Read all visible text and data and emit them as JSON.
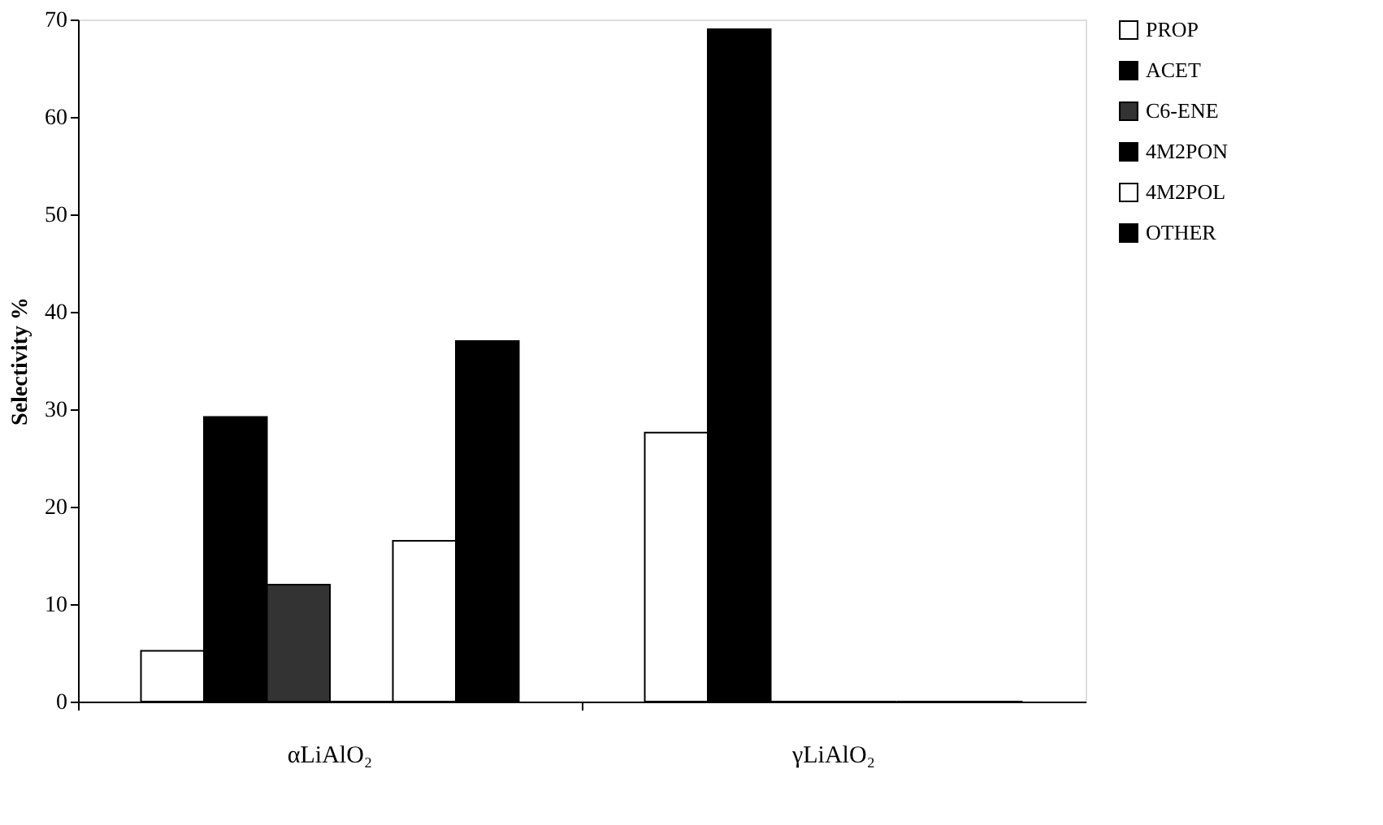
{
  "chart_data": {
    "type": "bar",
    "ylabel": "Selectivity %",
    "categories": [
      "αLiAlO₂",
      "γLiAlO₂"
    ],
    "series": [
      {
        "name": "PROP",
        "color": "#ffffff",
        "values": [
          5.2,
          27.6
        ]
      },
      {
        "name": "ACET",
        "color": "#000000",
        "values": [
          29.2,
          69
        ]
      },
      {
        "name": "C6-ENE",
        "color": "#333333",
        "values": [
          12,
          0
        ]
      },
      {
        "name": "4M2PON",
        "color": "#000000",
        "values": [
          0,
          0
        ]
      },
      {
        "name": "4M2POL",
        "color": "#ffffff",
        "values": [
          16.5,
          0
        ]
      },
      {
        "name": "OTHER",
        "color": "#000000",
        "values": [
          37,
          0
        ]
      }
    ],
    "ylim": [
      0,
      70
    ],
    "yticks": [
      0,
      10,
      20,
      30,
      40,
      50,
      60,
      70
    ],
    "grid": false,
    "legend": "right"
  }
}
